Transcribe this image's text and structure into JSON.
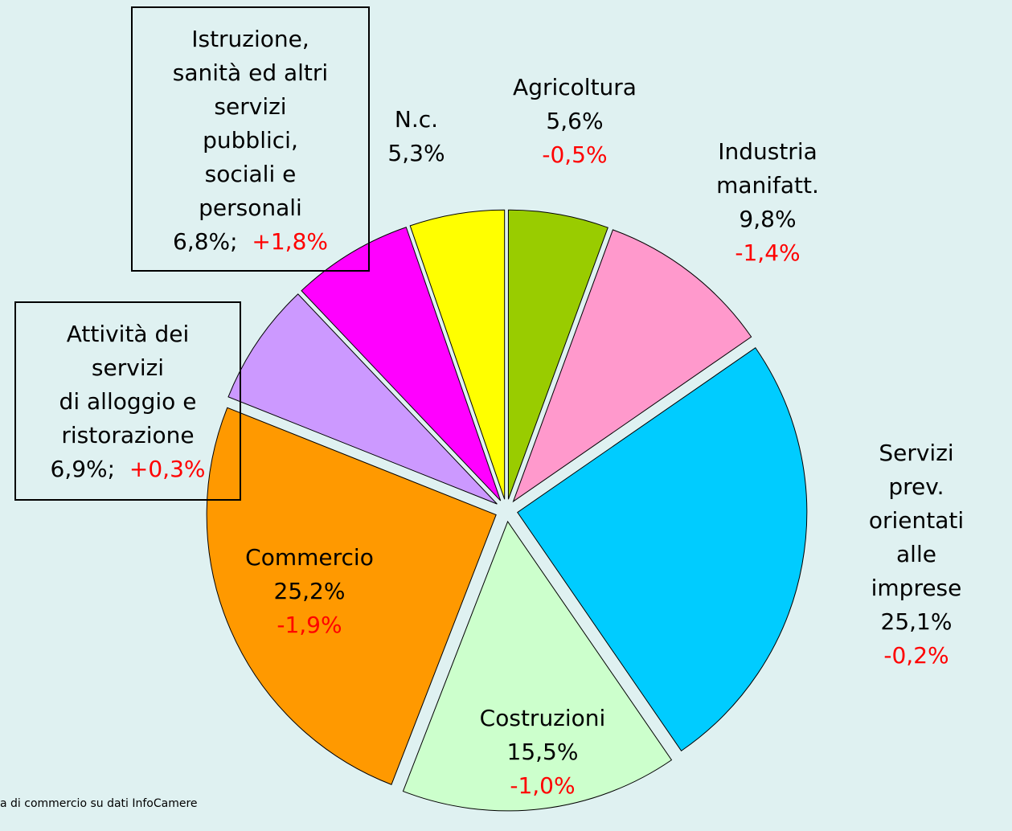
{
  "chart_data": {
    "type": "pie",
    "categories": [
      "Agricoltura",
      "Industria\nmanifatt.",
      "Servizi prev.\norientati alle\nimprese",
      "Costruzioni",
      "Commercio",
      "Attività dei\nservizi\ndi alloggio e\nristorazione",
      "Istruzione,\nsanità ed altri\nservizi\npubblici,\nsociali e\npersonali",
      "N.c."
    ],
    "values": [
      5.6,
      9.8,
      25.1,
      15.5,
      25.2,
      6.9,
      6.8,
      5.3
    ],
    "value_labels": [
      "5,6%",
      "9,8%",
      "25,1%",
      "15,5%",
      "25,2%",
      "6,9%;",
      "6,8%;",
      "5,3%"
    ],
    "changes": [
      -0.5,
      -1.4,
      -0.2,
      -1.0,
      -1.9,
      0.3,
      1.8,
      null
    ],
    "change_labels": [
      "-0,5%",
      "-1,4%",
      "-0,2%",
      "-1,0%",
      "-1,9%",
      "+0,3%",
      "+1,8%",
      null
    ],
    "colors": [
      "#99cc00",
      "#ff99cc",
      "#00ccff",
      "#ccffcc",
      "#ff9900",
      "#cc99ff",
      "#ff00ff",
      "#ffff00"
    ],
    "source": "a  di commercio su dati InfoCamere"
  }
}
